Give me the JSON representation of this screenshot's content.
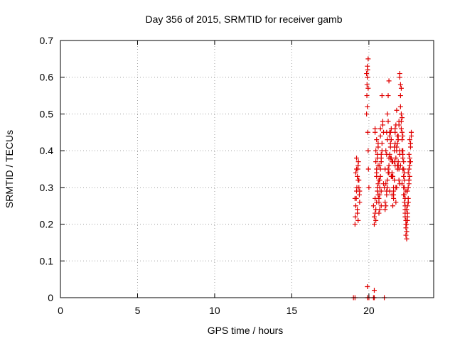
{
  "chart_data": {
    "type": "scatter",
    "title": "Day 356 of 2015, SRMTID for receiver gamb",
    "xlabel": "GPS time / hours",
    "ylabel": "SRMTID / TECUs",
    "xlim": [
      0,
      24.2
    ],
    "ylim": [
      0,
      0.7
    ],
    "xticks": [
      0,
      5,
      10,
      15,
      20
    ],
    "xtick_labels": [
      "0",
      "5",
      "10",
      "15",
      "20"
    ],
    "yticks": [
      0,
      0.1,
      0.2,
      0.3,
      0.4,
      0.5,
      0.6,
      0.7
    ],
    "ytick_labels": [
      "0",
      "0.1",
      "0.2",
      "0.3",
      "0.4",
      "0.5",
      "0.6",
      "0.7"
    ],
    "grid": true,
    "marker": "+",
    "color": "#e00000",
    "series": [
      {
        "name": "SRMTID",
        "x": [
          19.0,
          19.1,
          19.9,
          20.0,
          20.3,
          20.35,
          21.0,
          19.1,
          19.12,
          19.15,
          19.18,
          19.2,
          19.22,
          19.25,
          19.28,
          19.3,
          19.32,
          19.35,
          19.38,
          19.4,
          19.15,
          19.2,
          19.25,
          19.3,
          19.35,
          19.1,
          19.25,
          19.3,
          19.4,
          19.2,
          19.85,
          19.87,
          19.9,
          19.92,
          19.95,
          19.88,
          19.9,
          19.93,
          19.95,
          19.97,
          20.0,
          19.9,
          19.95,
          19.85,
          19.9,
          20.3,
          20.35,
          20.4,
          20.45,
          20.5,
          20.55,
          20.6,
          20.65,
          20.7,
          20.75,
          20.8,
          20.85,
          20.9,
          20.95,
          20.35,
          20.4,
          20.45,
          20.5,
          20.55,
          20.6,
          20.65,
          20.7,
          20.75,
          20.8,
          20.4,
          20.5,
          20.6,
          20.7,
          20.8,
          20.9,
          20.45,
          20.55,
          20.65,
          20.75,
          20.85,
          20.95,
          20.35,
          20.5,
          20.6,
          20.7,
          20.8,
          20.4,
          20.5,
          20.6,
          20.7,
          20.8,
          20.45,
          20.55,
          20.65,
          20.75,
          20.85,
          21.0,
          21.05,
          21.1,
          21.15,
          21.2,
          21.25,
          21.3,
          21.35,
          21.4,
          21.45,
          21.5,
          21.55,
          21.6,
          21.65,
          21.7,
          21.75,
          21.8,
          21.85,
          21.9,
          21.95,
          21.05,
          21.1,
          21.15,
          21.2,
          21.25,
          21.3,
          21.35,
          21.4,
          21.45,
          21.5,
          21.55,
          21.6,
          21.65,
          21.7,
          21.75,
          21.8,
          21.85,
          21.9,
          21.95,
          22.0,
          21.1,
          21.2,
          21.3,
          21.4,
          21.5,
          21.6,
          21.7,
          21.8,
          21.9,
          22.0,
          21.15,
          21.25,
          21.35,
          21.45,
          21.55,
          21.65,
          21.75,
          21.85,
          21.95,
          21.05,
          21.15,
          21.25,
          21.35,
          21.45,
          21.55,
          21.65,
          21.75,
          21.85,
          21.95,
          21.2,
          21.3,
          21.4,
          21.5,
          21.6,
          21.7,
          21.8,
          21.9,
          22.0,
          22.05,
          22.1,
          22.15,
          22.2,
          22.25,
          22.3,
          22.35,
          22.4,
          22.45,
          22.5,
          22.55,
          22.6,
          22.65,
          22.7,
          22.75,
          22.0,
          22.05,
          22.1,
          22.15,
          22.2,
          22.25,
          22.3,
          22.35,
          22.4,
          22.45,
          22.5,
          22.55,
          22.6,
          22.65,
          22.7,
          22.05,
          22.1,
          22.15,
          22.2,
          22.25,
          22.3,
          22.35,
          22.4,
          22.45,
          22.5,
          22.55,
          22.6,
          22.65,
          22.1,
          22.15,
          22.2,
          22.25,
          22.3,
          22.35,
          22.4,
          22.45,
          22.5,
          22.55,
          22.6,
          22.65,
          22.7,
          22.0,
          22.05,
          22.15,
          22.25,
          22.35,
          22.45,
          22.55,
          22.65,
          22.7,
          22.75,
          22.2,
          22.3,
          22.4,
          22.5,
          22.6
        ],
        "y": [
          0.0,
          0.0,
          0.0,
          0.0,
          0.0,
          0.0,
          0.0,
          0.2,
          0.22,
          0.25,
          0.27,
          0.29,
          0.3,
          0.33,
          0.35,
          0.36,
          0.37,
          0.32,
          0.28,
          0.26,
          0.34,
          0.38,
          0.24,
          0.21,
          0.3,
          0.27,
          0.23,
          0.32,
          0.29,
          0.35,
          0.5,
          0.55,
          0.6,
          0.62,
          0.65,
          0.58,
          0.52,
          0.45,
          0.4,
          0.35,
          0.3,
          0.63,
          0.57,
          0.61,
          0.03,
          0.25,
          0.22,
          0.45,
          0.4,
          0.33,
          0.3,
          0.28,
          0.26,
          0.24,
          0.35,
          0.38,
          0.42,
          0.47,
          0.31,
          0.2,
          0.27,
          0.37,
          0.43,
          0.29,
          0.36,
          0.23,
          0.32,
          0.44,
          0.39,
          0.46,
          0.34,
          0.41,
          0.3,
          0.25,
          0.48,
          0.21,
          0.38,
          0.27,
          0.33,
          0.4,
          0.45,
          0.02,
          0.26,
          0.31,
          0.36,
          0.29,
          0.23,
          0.35,
          0.42,
          0.28,
          0.37,
          0.24,
          0.39,
          0.32,
          0.46,
          0.55,
          0.3,
          0.35,
          0.4,
          0.45,
          0.5,
          0.55,
          0.59,
          0.45,
          0.38,
          0.33,
          0.28,
          0.25,
          0.3,
          0.37,
          0.42,
          0.47,
          0.51,
          0.44,
          0.36,
          0.32,
          0.26,
          0.31,
          0.39,
          0.43,
          0.48,
          0.34,
          0.29,
          0.41,
          0.46,
          0.37,
          0.33,
          0.27,
          0.4,
          0.45,
          0.38,
          0.3,
          0.35,
          0.43,
          0.48,
          0.39,
          0.25,
          0.32,
          0.36,
          0.42,
          0.34,
          0.29,
          0.46,
          0.4,
          0.37,
          0.31,
          0.28,
          0.35,
          0.44,
          0.38,
          0.33,
          0.41,
          0.3,
          0.36,
          0.47,
          0.24,
          0.29,
          0.34,
          0.39,
          0.43,
          0.37,
          0.32,
          0.26,
          0.42,
          0.35,
          0.3,
          0.38,
          0.45,
          0.33,
          0.28,
          0.36,
          0.41,
          0.44,
          0.6,
          0.55,
          0.5,
          0.45,
          0.4,
          0.35,
          0.3,
          0.25,
          0.2,
          0.18,
          0.22,
          0.27,
          0.32,
          0.37,
          0.42,
          0.44,
          0.61,
          0.58,
          0.48,
          0.43,
          0.38,
          0.33,
          0.28,
          0.23,
          0.19,
          0.16,
          0.21,
          0.26,
          0.31,
          0.36,
          0.41,
          0.52,
          0.46,
          0.4,
          0.35,
          0.3,
          0.26,
          0.22,
          0.17,
          0.24,
          0.29,
          0.34,
          0.39,
          0.43,
          0.57,
          0.49,
          0.44,
          0.37,
          0.32,
          0.27,
          0.21,
          0.18,
          0.25,
          0.3,
          0.35,
          0.38,
          0.42,
          0.4,
          0.36,
          0.31,
          0.28,
          0.24,
          0.2,
          0.26,
          0.33,
          0.37,
          0.45,
          0.39,
          0.34,
          0.29,
          0.23,
          0.32
        ]
      }
    ]
  }
}
